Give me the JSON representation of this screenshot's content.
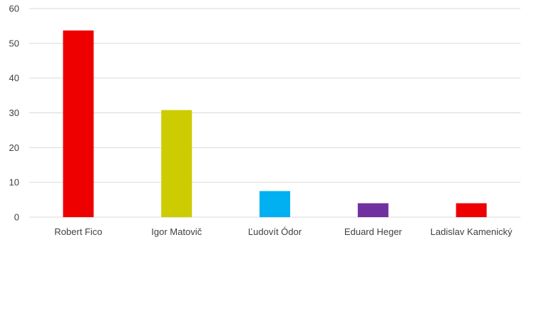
{
  "chart_data": {
    "type": "bar",
    "title": "",
    "xlabel": "",
    "ylabel": "",
    "categories": [
      "Robert Fico",
      "Igor Matovič",
      "Ľudovít Ódor",
      "Eduard Heger",
      "Ladislav Kamenický"
    ],
    "values": [
      53.7,
      30.8,
      7.5,
      4.0,
      4.0
    ],
    "colors": [
      "#ee0000",
      "#cccc00",
      "#00b0f0",
      "#7030a0",
      "#ee0000"
    ],
    "ylim": [
      0,
      60
    ],
    "yticks": [
      "0",
      "10",
      "20",
      "30",
      "40",
      "50",
      "60"
    ],
    "grid": true,
    "legend": "none"
  }
}
